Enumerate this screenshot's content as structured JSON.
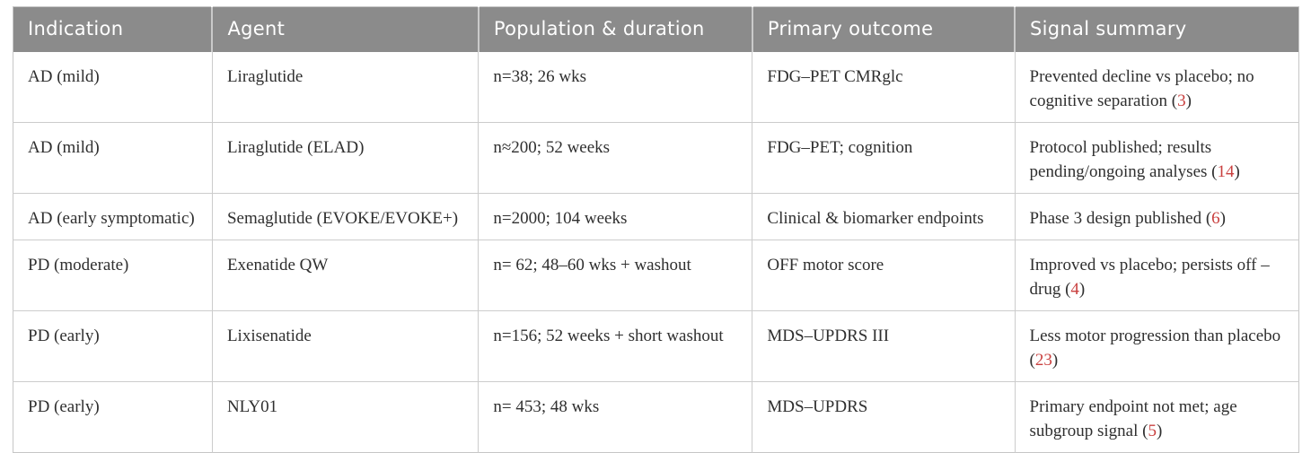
{
  "table": {
    "columns": [
      "Indication",
      "Agent",
      "Population & duration",
      "Primary outcome",
      "Signal summary"
    ],
    "rows": [
      {
        "indication": "AD (mild)",
        "agent": "Liraglutide",
        "population": "n=38; 26 wks",
        "outcome": "FDG–PET CMRglc",
        "signal_prefix": "Prevented decline vs placebo; no cognitive separation (",
        "signal_ref": "3",
        "signal_suffix": ")"
      },
      {
        "indication": "AD (mild)",
        "agent": "Liraglutide (ELAD)",
        "population": "n≈200; 52 weeks",
        "outcome": "FDG–PET; cognition",
        "signal_prefix": "Protocol published; results pending/ongoing analyses (",
        "signal_ref": "14",
        "signal_suffix": ")"
      },
      {
        "indication": "AD (early symptomatic)",
        "agent": "Semaglutide (EVOKE/EVOKE+)",
        "population": "n=2000; 104 weeks",
        "outcome": "Clinical & biomarker endpoints",
        "signal_prefix": "Phase 3 design published (",
        "signal_ref": "6",
        "signal_suffix": ")"
      },
      {
        "indication": "PD (moderate)",
        "agent": "Exenatide QW",
        "population": "n= 62; 48–60 wks + washout",
        "outcome": "OFF motor score",
        "signal_prefix": "Improved vs placebo; persists off –drug (",
        "signal_ref": "4",
        "signal_suffix": ")"
      },
      {
        "indication": "PD (early)",
        "agent": "Lixisenatide",
        "population": "n=156; 52 weeks + short washout",
        "outcome": "MDS–UPDRS III",
        "signal_prefix": "Less motor progression than placebo (",
        "signal_ref": "23",
        "signal_suffix": ")"
      },
      {
        "indication": "PD (early)",
        "agent": "NLY01",
        "population": "n= 453; 48 wks",
        "outcome": "MDS–UPDRS",
        "signal_prefix": "Primary endpoint not met; age subgroup signal (",
        "signal_ref": "5",
        "signal_suffix": ")"
      }
    ]
  },
  "colors": {
    "header_bg": "#8b8b8b",
    "header_text": "#ffffff",
    "body_text": "#2f2f2f",
    "grid_line": "#cccccc",
    "reference_red": "#c9403f"
  }
}
